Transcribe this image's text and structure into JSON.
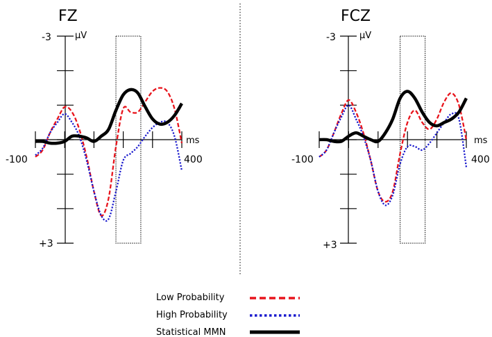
{
  "chart_data": [
    {
      "type": "line",
      "title": "FZ",
      "xlim": [
        -100,
        400
      ],
      "ylim": [
        -3,
        3
      ],
      "y_inverted": true,
      "xunit": "ms",
      "yunit": "µV",
      "tick_labels": {
        "x_min": "-100",
        "x_max": "400",
        "y_top": "-3",
        "y_bottom": "+3"
      },
      "highlight_window_ms": [
        175,
        260
      ],
      "series": [
        {
          "name": "Low Probability",
          "color": "#e8141c",
          "style": "dashed",
          "x": [
            -100,
            -75,
            -50,
            -25,
            0,
            25,
            50,
            75,
            100,
            125,
            150,
            175,
            200,
            225,
            250,
            275,
            300,
            325,
            350,
            375,
            400
          ],
          "y": [
            0.5,
            0.3,
            -0.2,
            -0.6,
            -0.95,
            -0.8,
            -0.3,
            0.5,
            1.5,
            2.2,
            1.7,
            0.2,
            -0.9,
            -0.8,
            -0.8,
            -1.1,
            -1.4,
            -1.5,
            -1.4,
            -0.9,
            0.1
          ]
        },
        {
          "name": "High Probability",
          "color": "#1a1acd",
          "style": "dotted",
          "x": [
            -100,
            -75,
            -50,
            -25,
            0,
            25,
            50,
            75,
            100,
            125,
            150,
            175,
            200,
            225,
            250,
            275,
            300,
            325,
            350,
            375,
            400
          ],
          "y": [
            0.45,
            0.25,
            -0.2,
            -0.5,
            -0.75,
            -0.5,
            -0.1,
            0.6,
            1.5,
            2.2,
            2.3,
            1.5,
            0.6,
            0.4,
            0.2,
            -0.1,
            -0.35,
            -0.5,
            -0.5,
            -0.1,
            0.9
          ]
        },
        {
          "name": "Statistical MMN",
          "color": "#000000",
          "style": "solid",
          "x": [
            -100,
            -75,
            -50,
            -25,
            0,
            25,
            50,
            75,
            100,
            125,
            150,
            175,
            200,
            225,
            250,
            275,
            300,
            325,
            350,
            375,
            400
          ],
          "y": [
            0.05,
            0.05,
            0.1,
            0.1,
            0.05,
            -0.1,
            -0.1,
            -0.05,
            0.05,
            -0.1,
            -0.3,
            -0.85,
            -1.3,
            -1.45,
            -1.35,
            -0.95,
            -0.6,
            -0.45,
            -0.5,
            -0.7,
            -1.05
          ]
        }
      ]
    },
    {
      "type": "line",
      "title": "FCZ",
      "xlim": [
        -100,
        400
      ],
      "ylim": [
        -3,
        3
      ],
      "y_inverted": true,
      "xunit": "ms",
      "yunit": "µV",
      "tick_labels": {
        "x_min": "-100",
        "x_max": "400",
        "y_top": "-3",
        "y_bottom": "+3"
      },
      "highlight_window_ms": [
        175,
        260
      ],
      "series": [
        {
          "name": "Low Probability",
          "color": "#e8141c",
          "style": "dashed",
          "x": [
            -100,
            -75,
            -50,
            -25,
            0,
            25,
            50,
            75,
            100,
            125,
            150,
            175,
            200,
            225,
            250,
            275,
            300,
            325,
            350,
            375,
            400
          ],
          "y": [
            0.5,
            0.3,
            -0.2,
            -0.75,
            -1.15,
            -0.8,
            -0.2,
            0.6,
            1.5,
            1.8,
            1.5,
            0.4,
            -0.5,
            -0.85,
            -0.5,
            -0.3,
            -0.6,
            -1.1,
            -1.35,
            -1.0,
            0.0
          ]
        },
        {
          "name": "High Probability",
          "color": "#1a1acd",
          "style": "dotted",
          "x": [
            -100,
            -75,
            -50,
            -25,
            0,
            25,
            50,
            75,
            100,
            125,
            150,
            175,
            200,
            225,
            250,
            275,
            300,
            325,
            350,
            375,
            400
          ],
          "y": [
            0.5,
            0.3,
            -0.2,
            -0.65,
            -1.0,
            -0.6,
            -0.1,
            0.6,
            1.5,
            1.9,
            1.6,
            0.7,
            0.2,
            0.2,
            0.3,
            0.1,
            -0.2,
            -0.5,
            -0.75,
            -0.6,
            0.8
          ]
        },
        {
          "name": "Statistical MMN",
          "color": "#000000",
          "style": "solid",
          "x": [
            -100,
            -75,
            -50,
            -25,
            0,
            25,
            50,
            75,
            100,
            125,
            150,
            175,
            200,
            225,
            250,
            275,
            300,
            325,
            350,
            375,
            400
          ],
          "y": [
            0.0,
            0.0,
            0.05,
            0.05,
            -0.1,
            -0.2,
            -0.1,
            0.0,
            0.05,
            -0.2,
            -0.6,
            -1.2,
            -1.4,
            -1.2,
            -0.8,
            -0.5,
            -0.4,
            -0.5,
            -0.6,
            -0.8,
            -1.2
          ]
        }
      ]
    }
  ],
  "legend": {
    "items": [
      {
        "label": "Low Probability",
        "color": "#e8141c",
        "style": "dashed"
      },
      {
        "label": "High Probability",
        "color": "#1a1acd",
        "style": "dotted"
      },
      {
        "label": "Statistical MMN",
        "color": "#000000",
        "style": "solid"
      }
    ]
  }
}
